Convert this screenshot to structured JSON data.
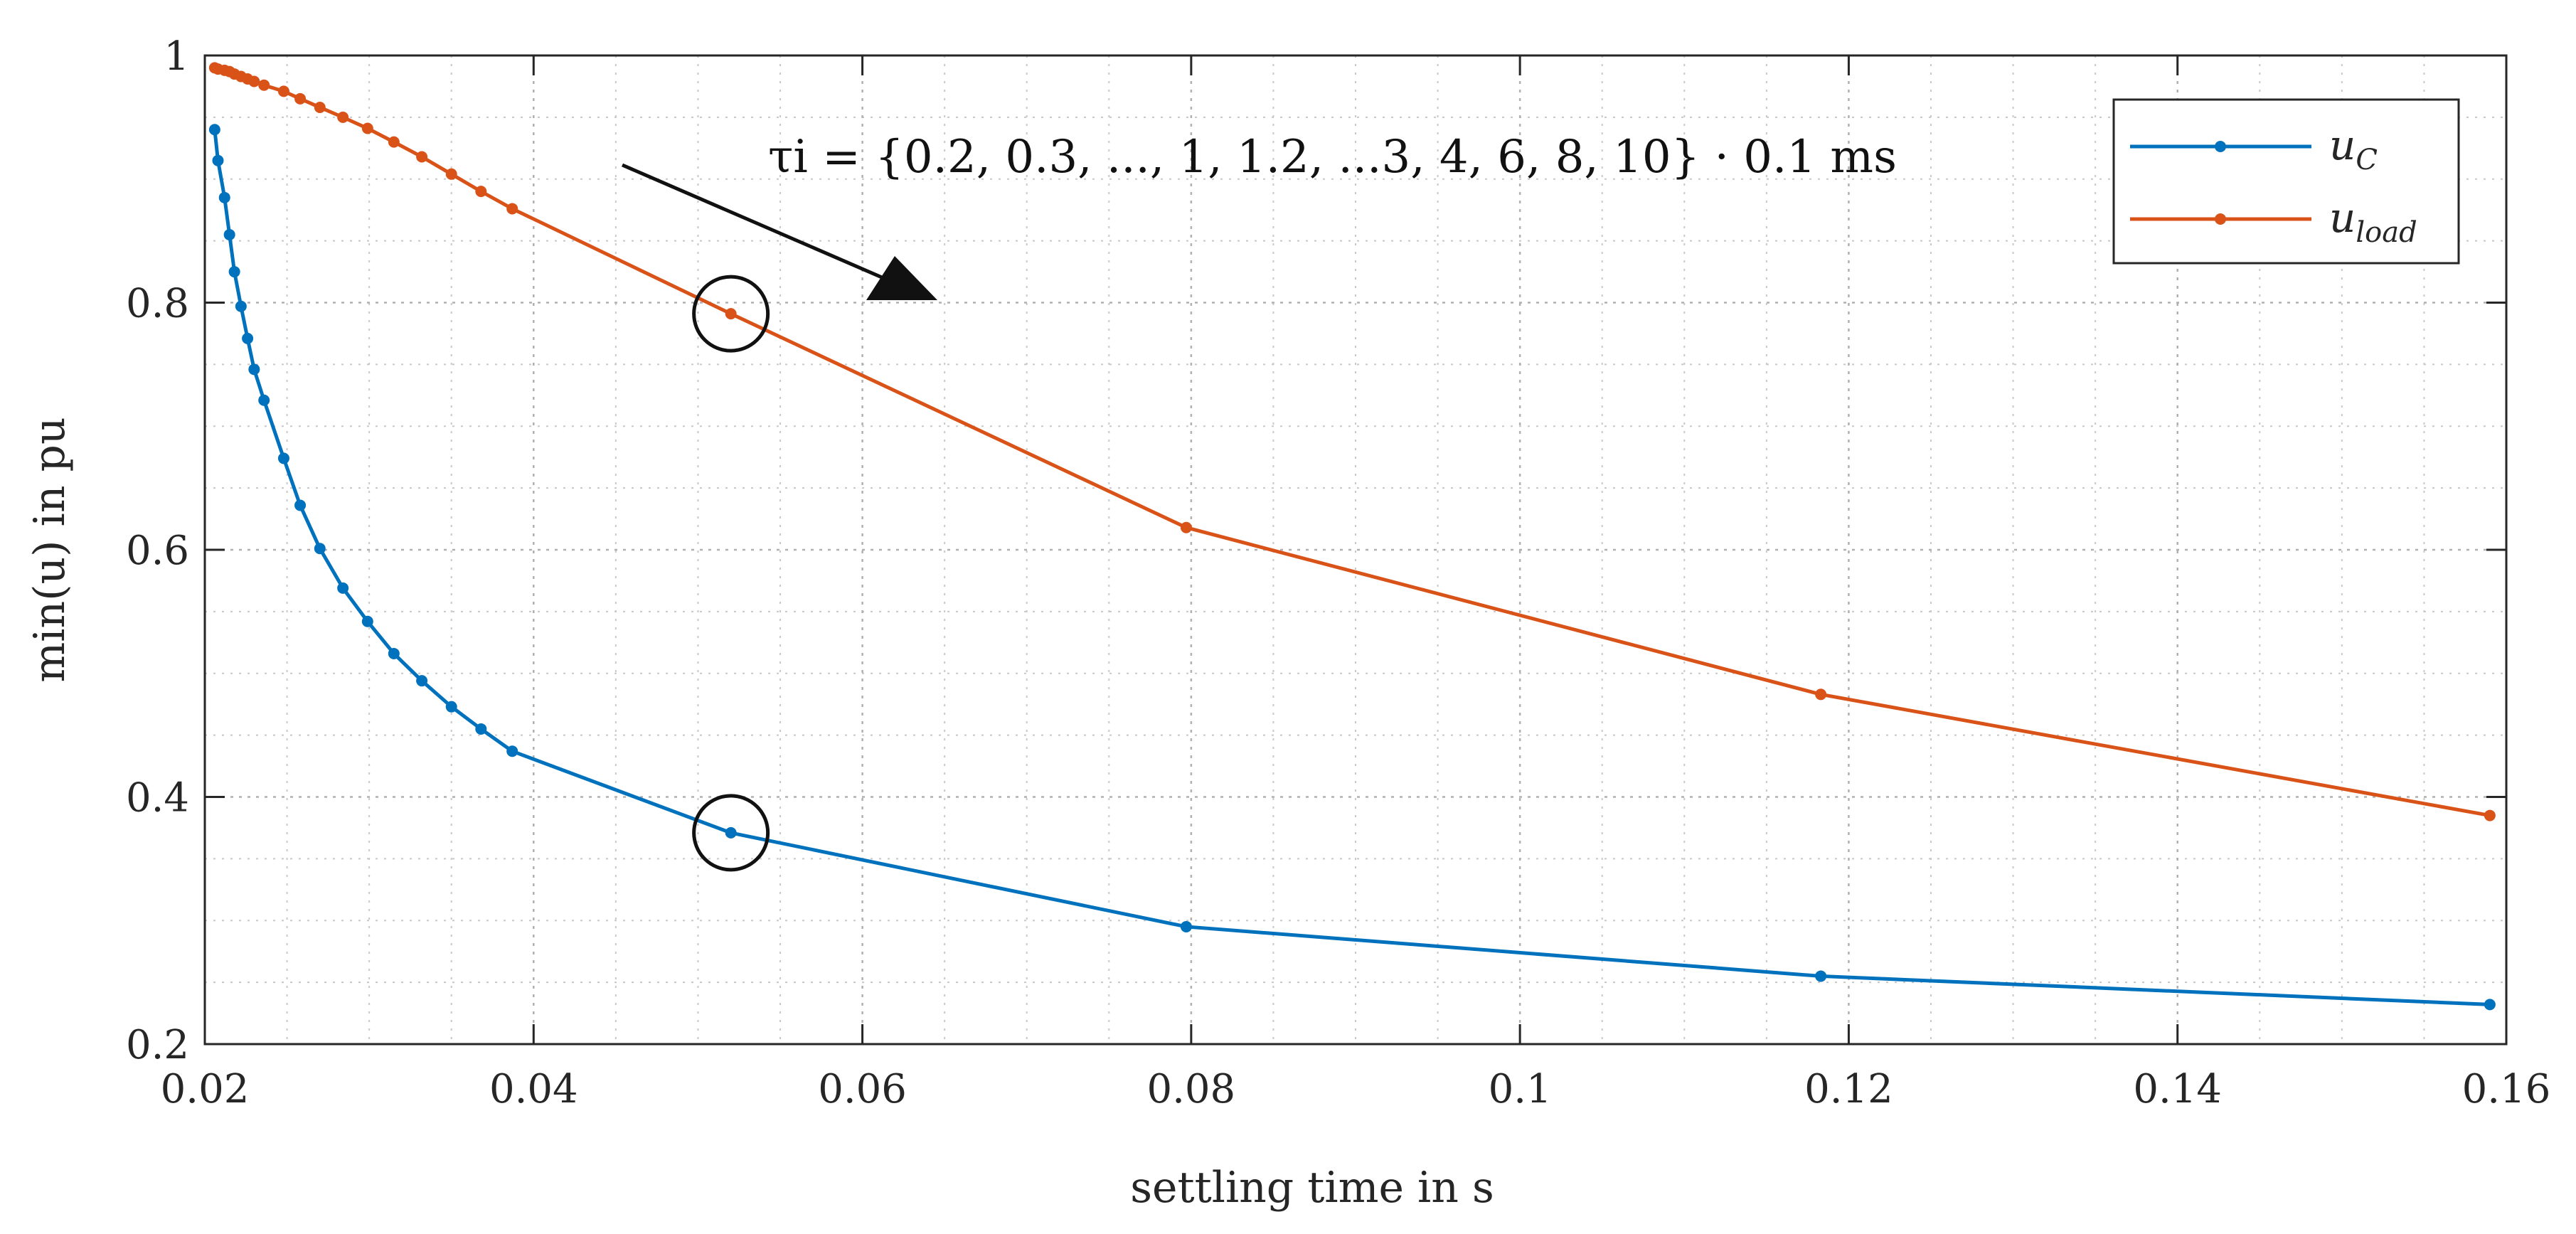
{
  "chart_data": {
    "type": "line",
    "title": "",
    "xlabel": "settling time in s",
    "ylabel": "min(u) in pu",
    "xlim": [
      0.02,
      0.16
    ],
    "ylim": [
      0.2,
      1.0
    ],
    "grid": true,
    "minor_grid": true,
    "legend_position": "top-right",
    "x_ticks": [
      0.02,
      0.04,
      0.06,
      0.08,
      0.1,
      0.12,
      0.14,
      0.16
    ],
    "x_tick_labels": [
      "0.02",
      "0.04",
      "0.06",
      "0.08",
      "0.1",
      "0.12",
      "0.14",
      "0.16"
    ],
    "y_ticks": [
      0.2,
      0.4,
      0.6,
      0.8,
      1.0
    ],
    "y_tick_labels": [
      "0.2",
      "0.4",
      "0.6",
      "0.8",
      "1"
    ],
    "annotation": "τi = {0.2, 0.3, ..., 1, 1.2, ...3, 4, 6, 8, 10} · 0.1 ms",
    "series": [
      {
        "name": "uC",
        "legend_label": "u",
        "legend_subscript": "C",
        "color": "#0072BD",
        "x": [
          0.0206,
          0.0208,
          0.0212,
          0.0215,
          0.0218,
          0.0222,
          0.0226,
          0.023,
          0.0236,
          0.0248,
          0.0258,
          0.027,
          0.0284,
          0.0299,
          0.0315,
          0.0332,
          0.035,
          0.0368,
          0.0387,
          0.052,
          0.0797,
          0.1183,
          0.159
        ],
        "y": [
          0.94,
          0.915,
          0.885,
          0.855,
          0.825,
          0.797,
          0.771,
          0.746,
          0.721,
          0.674,
          0.636,
          0.601,
          0.569,
          0.542,
          0.516,
          0.494,
          0.473,
          0.455,
          0.437,
          0.371,
          0.295,
          0.255,
          0.232
        ]
      },
      {
        "name": "uload",
        "legend_label": "u",
        "legend_subscript": "load",
        "color": "#D95319",
        "x": [
          0.0206,
          0.0208,
          0.0212,
          0.0215,
          0.0218,
          0.0222,
          0.0226,
          0.023,
          0.0236,
          0.0248,
          0.0258,
          0.027,
          0.0284,
          0.0299,
          0.0315,
          0.0332,
          0.035,
          0.0368,
          0.0387,
          0.052,
          0.0797,
          0.1183,
          0.159
        ],
        "y": [
          0.99,
          0.989,
          0.988,
          0.987,
          0.985,
          0.983,
          0.981,
          0.979,
          0.976,
          0.971,
          0.965,
          0.958,
          0.95,
          0.941,
          0.93,
          0.918,
          0.904,
          0.89,
          0.876,
          0.791,
          0.618,
          0.483,
          0.385
        ]
      }
    ],
    "highlighted_points": [
      {
        "series": "uload",
        "x": 0.052,
        "y": 0.791
      },
      {
        "series": "uC",
        "x": 0.052,
        "y": 0.371
      }
    ]
  }
}
